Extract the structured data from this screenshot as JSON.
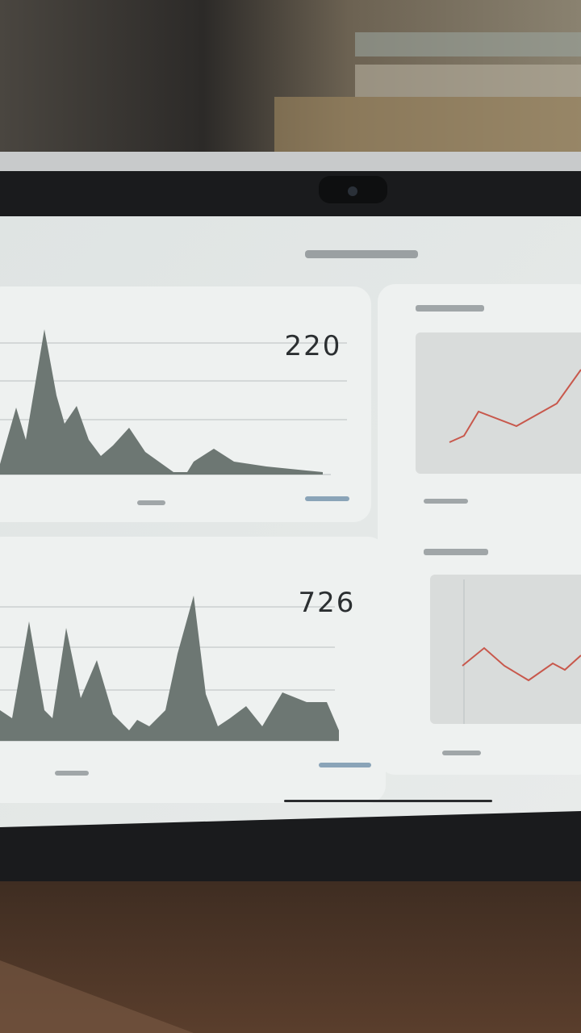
{
  "cards": [
    {
      "value": 220
    },
    {
      "value": 726
    }
  ]
}
